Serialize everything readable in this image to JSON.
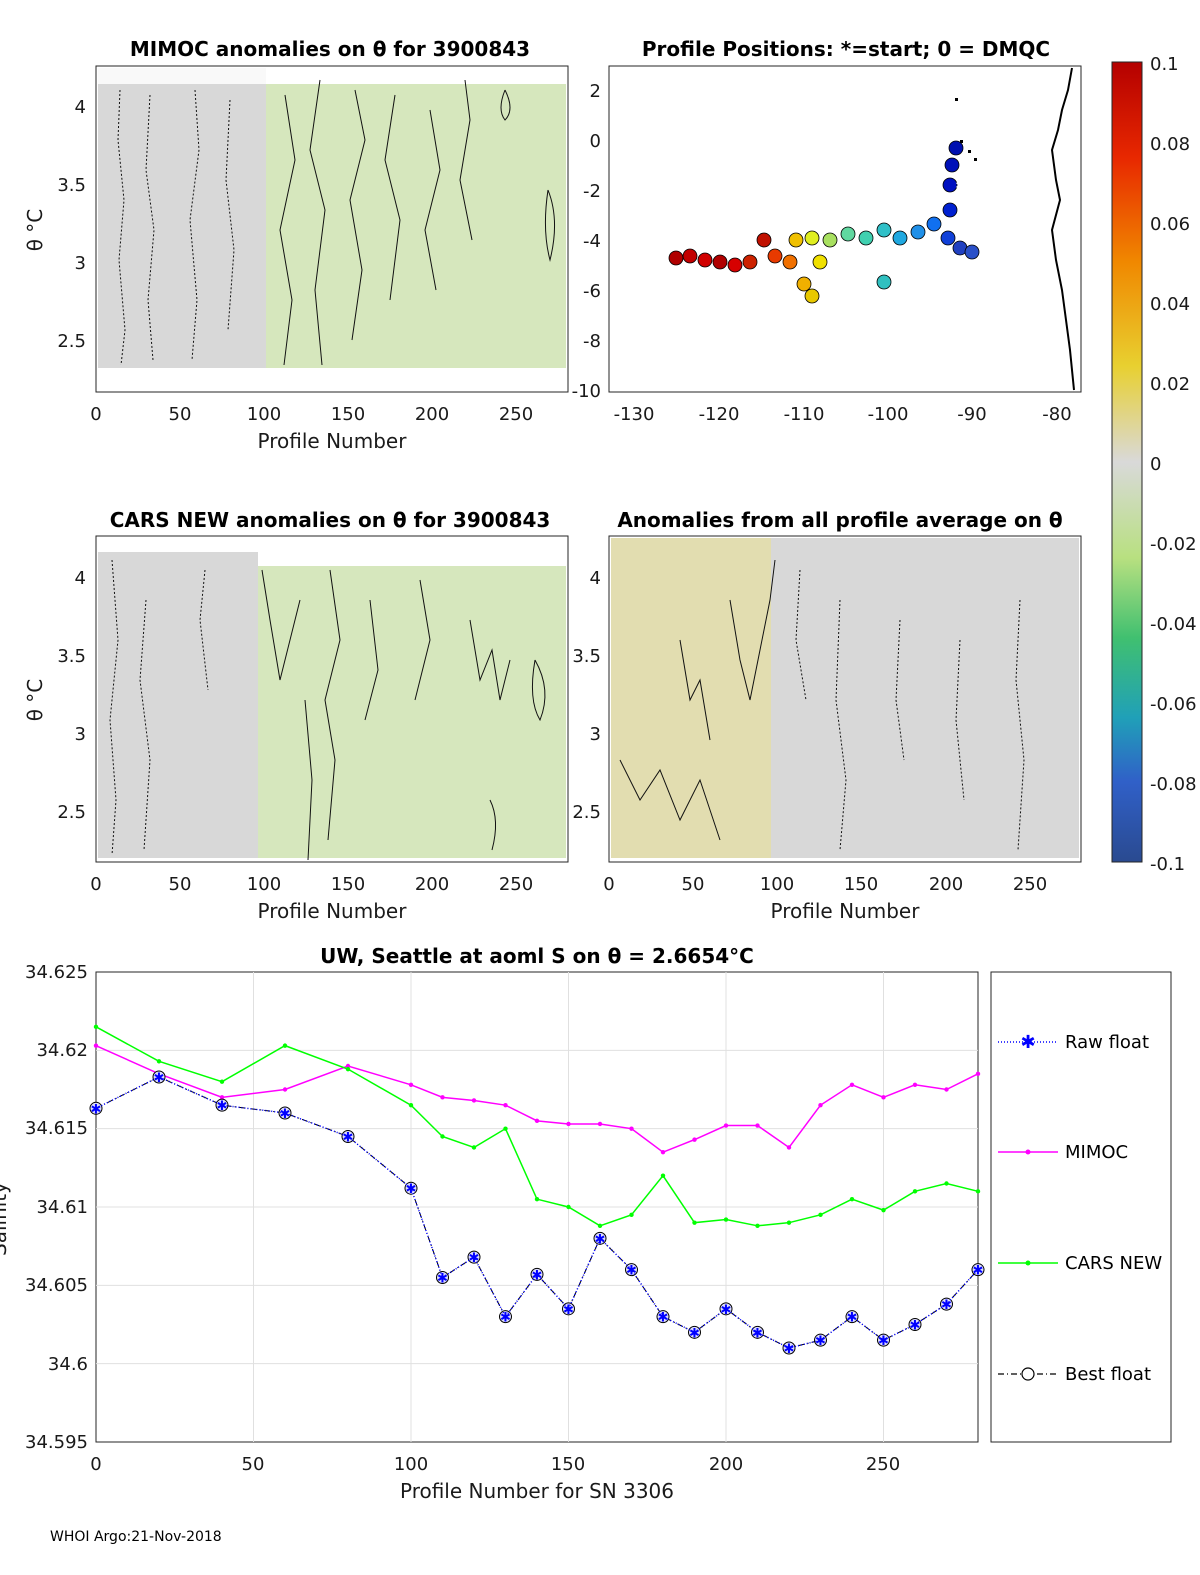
{
  "footer": "WHOI Argo:21-Nov-2018",
  "panels": {
    "mimoc": {
      "title": "MIMOC anomalies on θ  for 3900843",
      "xlabel": "Profile Number",
      "ylabel": "θ °C",
      "xticks": [
        "0",
        "50",
        "100",
        "150",
        "200",
        "250"
      ],
      "yticks": [
        "4",
        "3.5",
        "3",
        "2.5"
      ]
    },
    "positions": {
      "title": "Profile Positions: *=start; 0 = DMQC",
      "xticks": [
        "-130",
        "-120",
        "-110",
        "-100",
        "-90",
        "-80"
      ],
      "yticks": [
        "2",
        "0",
        "-2",
        "-4",
        "-6",
        "-8",
        "-10"
      ]
    },
    "cars": {
      "title": "CARS NEW anomalies on θ for 3900843",
      "xlabel": "Profile Number",
      "ylabel": "θ °C",
      "xticks": [
        "0",
        "50",
        "100",
        "150",
        "200",
        "250"
      ],
      "yticks": [
        "4",
        "3.5",
        "3",
        "2.5"
      ]
    },
    "average": {
      "title": "Anomalies from all profile average on θ",
      "xlabel": "Profile Number",
      "xticks": [
        "0",
        "50",
        "100",
        "150",
        "200",
        "250"
      ],
      "yticks": [
        "4",
        "3.5",
        "3",
        "2.5"
      ]
    },
    "colorbar": {
      "ticks": [
        "0.1",
        "0.08",
        "0.06",
        "0.04",
        "0.02",
        "0",
        "-0.02",
        "-0.04",
        "-0.06",
        "-0.08",
        "-0.1"
      ]
    }
  },
  "chart_data": {
    "type": "line",
    "title": "UW, Seattle at aoml S on θ = 2.6654°C",
    "xlabel": "Profile Number for SN 3306",
    "ylabel": "Salinity",
    "xlim": [
      0,
      280
    ],
    "ylim": [
      34.595,
      34.625
    ],
    "xticks": [
      "0",
      "50",
      "100",
      "150",
      "200",
      "250"
    ],
    "yticks": [
      "34.625",
      "34.62",
      "34.615",
      "34.61",
      "34.605",
      "34.6",
      "34.595"
    ],
    "grid": true,
    "legend_position": "right-outside",
    "series": [
      {
        "name": "Raw float",
        "color": "#0000ff",
        "marker": "star",
        "x": [
          0,
          20,
          40,
          60,
          80,
          100,
          110,
          120,
          130,
          140,
          150,
          160,
          170,
          180,
          190,
          200,
          210,
          220,
          230,
          240,
          250,
          260,
          270,
          280
        ],
        "values": [
          34.6163,
          34.6183,
          34.6165,
          34.616,
          34.6145,
          34.6112,
          34.6055,
          34.6068,
          34.603,
          34.6057,
          34.6035,
          34.608,
          34.606,
          34.603,
          34.602,
          34.6035,
          34.602,
          34.601,
          34.6015,
          34.603,
          34.6015,
          34.6025,
          34.6038,
          34.606
        ]
      },
      {
        "name": "MIMOC",
        "color": "#ff00ff",
        "marker": "dot",
        "x": [
          0,
          20,
          40,
          60,
          80,
          100,
          110,
          120,
          130,
          140,
          150,
          160,
          170,
          180,
          190,
          200,
          210,
          220,
          230,
          240,
          250,
          260,
          270,
          280
        ],
        "values": [
          34.6203,
          34.6185,
          34.617,
          34.6175,
          34.619,
          34.6178,
          34.617,
          34.6168,
          34.6165,
          34.6155,
          34.6153,
          34.6153,
          34.615,
          34.6135,
          34.6143,
          34.6152,
          34.6152,
          34.6138,
          34.6165,
          34.6178,
          34.617,
          34.6178,
          34.6175,
          34.6185
        ]
      },
      {
        "name": "CARS NEW",
        "color": "#00ff00",
        "marker": "dot",
        "x": [
          0,
          20,
          40,
          60,
          80,
          100,
          110,
          120,
          130,
          140,
          150,
          160,
          170,
          180,
          190,
          200,
          210,
          220,
          230,
          240,
          250,
          260,
          270,
          280
        ],
        "values": [
          34.6215,
          34.6193,
          34.618,
          34.6203,
          34.6188,
          34.6165,
          34.6145,
          34.6138,
          34.615,
          34.6105,
          34.61,
          34.6088,
          34.6095,
          34.612,
          34.609,
          34.6092,
          34.6088,
          34.609,
          34.6095,
          34.6105,
          34.6098,
          34.611,
          34.6115,
          34.611
        ]
      },
      {
        "name": "Best float",
        "color": "#000000",
        "marker": "circle",
        "x": [
          0,
          20,
          40,
          60,
          80,
          100,
          110,
          120,
          130,
          140,
          150,
          160,
          170,
          180,
          190,
          200,
          210,
          220,
          230,
          240,
          250,
          260,
          270,
          280
        ],
        "values": [
          34.6163,
          34.6183,
          34.6165,
          34.616,
          34.6145,
          34.6112,
          34.6055,
          34.6068,
          34.603,
          34.6057,
          34.6035,
          34.608,
          34.606,
          34.603,
          34.602,
          34.6035,
          34.602,
          34.601,
          34.6015,
          34.603,
          34.6015,
          34.6025,
          34.6038,
          34.606
        ]
      }
    ]
  }
}
